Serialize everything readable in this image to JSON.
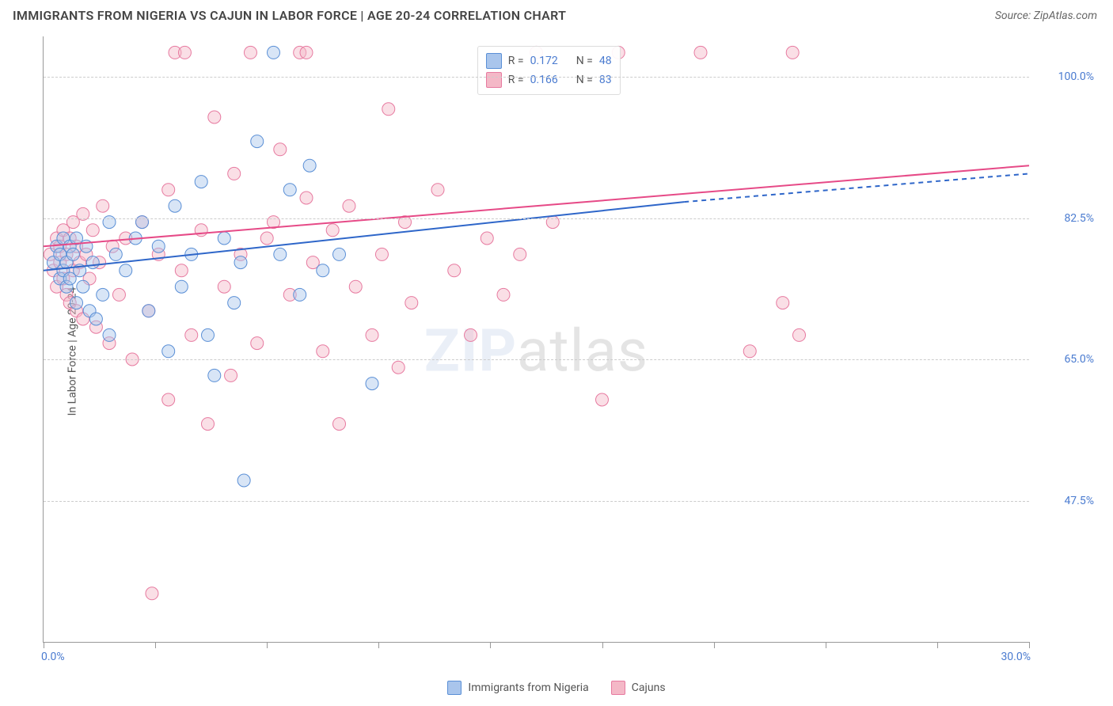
{
  "header": {
    "title": "IMMIGRANTS FROM NIGERIA VS CAJUN IN LABOR FORCE | AGE 20-24 CORRELATION CHART",
    "source_prefix": "Source: ",
    "source_name": "ZipAtlas.com"
  },
  "chart": {
    "type": "scatter",
    "ylabel": "In Labor Force | Age 20-24",
    "xlim": [
      0,
      30
    ],
    "ylim": [
      30,
      105
    ],
    "xtick_positions": [
      0,
      3.4,
      6.8,
      10.2,
      13.6,
      17.0,
      20.4,
      23.8,
      27.2,
      30
    ],
    "xtick_labels": {
      "start": "0.0%",
      "end": "30.0%"
    },
    "ytick_positions": [
      47.5,
      65.0,
      82.5,
      100.0
    ],
    "ytick_labels": [
      "47.5%",
      "65.0%",
      "82.5%",
      "100.0%"
    ],
    "background_color": "#ffffff",
    "grid_color": "#cccccc",
    "axis_color": "#999999",
    "label_color": "#4a7bd0",
    "text_color": "#555555",
    "title_fontsize": 16,
    "label_fontsize": 14,
    "marker_radius": 8,
    "marker_opacity": 0.45,
    "watermark": {
      "text_a": "ZIP",
      "text_b": "atlas"
    },
    "series": [
      {
        "name": "Immigrants from Nigeria",
        "color_fill": "#a9c5ec",
        "color_stroke": "#5a8fd6",
        "r_value": "0.172",
        "n_value": "48",
        "trend": {
          "x1": 0,
          "y1": 76,
          "x2": 19.5,
          "y2": 84.5,
          "x2_dash": 30,
          "y2_dash": 88,
          "stroke": "#2e66c9",
          "width": 2
        },
        "points": [
          [
            0.3,
            77
          ],
          [
            0.4,
            79
          ],
          [
            0.5,
            75
          ],
          [
            0.5,
            78
          ],
          [
            0.6,
            76
          ],
          [
            0.6,
            80
          ],
          [
            0.7,
            74
          ],
          [
            0.7,
            77
          ],
          [
            0.8,
            79
          ],
          [
            0.8,
            75
          ],
          [
            0.9,
            78
          ],
          [
            1.0,
            72
          ],
          [
            1.0,
            80
          ],
          [
            1.1,
            76
          ],
          [
            1.2,
            74
          ],
          [
            1.3,
            79
          ],
          [
            1.4,
            71
          ],
          [
            1.5,
            77
          ],
          [
            1.6,
            70
          ],
          [
            1.8,
            73
          ],
          [
            2.0,
            82
          ],
          [
            2.0,
            68
          ],
          [
            2.2,
            78
          ],
          [
            2.5,
            76
          ],
          [
            2.8,
            80
          ],
          [
            3.0,
            82
          ],
          [
            3.2,
            71
          ],
          [
            3.5,
            79
          ],
          [
            3.8,
            66
          ],
          [
            4.0,
            84
          ],
          [
            4.2,
            74
          ],
          [
            4.5,
            78
          ],
          [
            4.8,
            87
          ],
          [
            5.0,
            68
          ],
          [
            5.2,
            63
          ],
          [
            5.5,
            80
          ],
          [
            5.8,
            72
          ],
          [
            6.0,
            77
          ],
          [
            6.1,
            50
          ],
          [
            6.5,
            92
          ],
          [
            7.0,
            103
          ],
          [
            7.2,
            78
          ],
          [
            7.5,
            86
          ],
          [
            7.8,
            73
          ],
          [
            8.1,
            89
          ],
          [
            8.5,
            76
          ],
          [
            9.0,
            78
          ],
          [
            10.0,
            62
          ]
        ]
      },
      {
        "name": "Cajuns",
        "color_fill": "#f4b8c7",
        "color_stroke": "#e77aa0",
        "r_value": "0.166",
        "n_value": "83",
        "trend": {
          "x1": 0,
          "y1": 79,
          "x2": 30,
          "y2": 89,
          "stroke": "#e64a87",
          "width": 2
        },
        "points": [
          [
            0.2,
            78
          ],
          [
            0.3,
            76
          ],
          [
            0.4,
            80
          ],
          [
            0.4,
            74
          ],
          [
            0.5,
            77
          ],
          [
            0.5,
            79
          ],
          [
            0.6,
            75
          ],
          [
            0.6,
            81
          ],
          [
            0.7,
            73
          ],
          [
            0.7,
            78
          ],
          [
            0.8,
            80
          ],
          [
            0.8,
            72
          ],
          [
            0.9,
            76
          ],
          [
            0.9,
            82
          ],
          [
            1.0,
            79
          ],
          [
            1.0,
            71
          ],
          [
            1.1,
            77
          ],
          [
            1.2,
            83
          ],
          [
            1.2,
            70
          ],
          [
            1.3,
            78
          ],
          [
            1.4,
            75
          ],
          [
            1.5,
            81
          ],
          [
            1.6,
            69
          ],
          [
            1.7,
            77
          ],
          [
            1.8,
            84
          ],
          [
            2.0,
            67
          ],
          [
            2.1,
            79
          ],
          [
            2.3,
            73
          ],
          [
            2.5,
            80
          ],
          [
            2.7,
            65
          ],
          [
            3.0,
            82
          ],
          [
            3.2,
            71
          ],
          [
            3.3,
            36
          ],
          [
            3.5,
            78
          ],
          [
            3.8,
            86
          ],
          [
            3.8,
            60
          ],
          [
            4.0,
            103
          ],
          [
            4.2,
            76
          ],
          [
            4.3,
            103
          ],
          [
            4.5,
            68
          ],
          [
            4.8,
            81
          ],
          [
            5.0,
            57
          ],
          [
            5.2,
            95
          ],
          [
            5.5,
            74
          ],
          [
            5.7,
            63
          ],
          [
            5.8,
            88
          ],
          [
            6.0,
            78
          ],
          [
            6.3,
            103
          ],
          [
            6.5,
            67
          ],
          [
            6.8,
            80
          ],
          [
            7.0,
            82
          ],
          [
            7.2,
            91
          ],
          [
            7.5,
            73
          ],
          [
            7.8,
            103
          ],
          [
            8.0,
            103
          ],
          [
            8.0,
            85
          ],
          [
            8.2,
            77
          ],
          [
            8.5,
            66
          ],
          [
            8.8,
            81
          ],
          [
            9.0,
            57
          ],
          [
            9.3,
            84
          ],
          [
            9.5,
            74
          ],
          [
            10.0,
            68
          ],
          [
            10.3,
            78
          ],
          [
            10.5,
            96
          ],
          [
            10.8,
            64
          ],
          [
            11.0,
            82
          ],
          [
            11.2,
            72
          ],
          [
            12.0,
            86
          ],
          [
            12.5,
            76
          ],
          [
            13.0,
            68
          ],
          [
            13.5,
            80
          ],
          [
            14.0,
            73
          ],
          [
            14.5,
            78
          ],
          [
            15.0,
            103
          ],
          [
            15.5,
            82
          ],
          [
            17.0,
            60
          ],
          [
            17.5,
            103
          ],
          [
            20.0,
            103
          ],
          [
            21.5,
            66
          ],
          [
            22.5,
            72
          ],
          [
            22.8,
            103
          ],
          [
            23.0,
            68
          ]
        ]
      }
    ],
    "stat_box": {
      "left_pct": 44
    }
  }
}
